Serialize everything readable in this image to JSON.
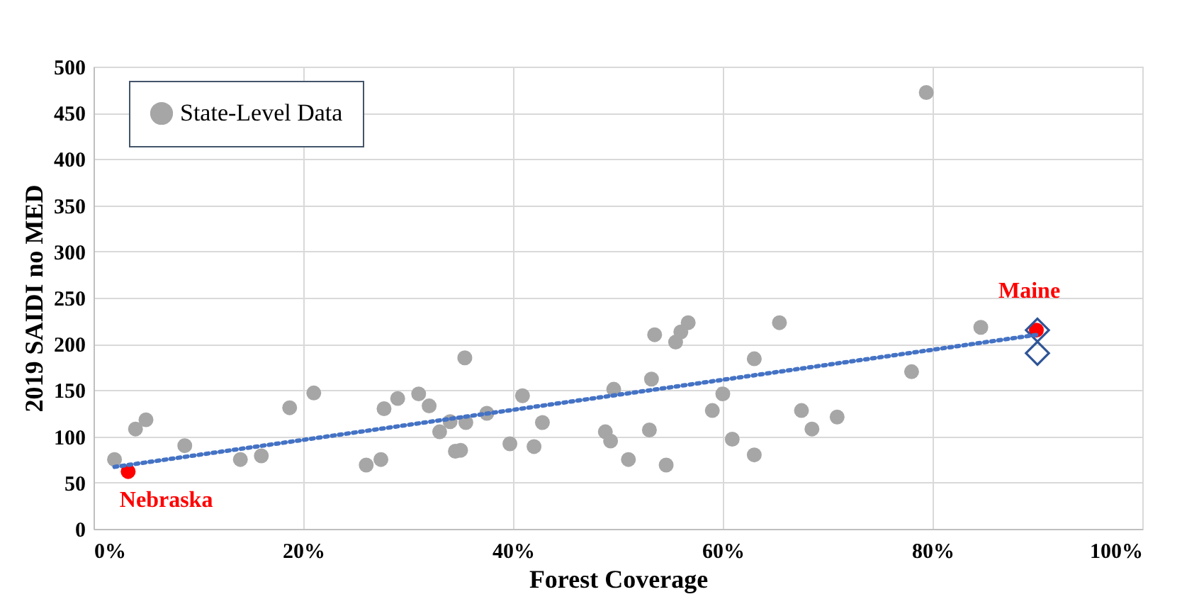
{
  "chart_data": {
    "type": "scatter",
    "xlabel": "Forest Coverage",
    "ylabel": "2019 SAIDI no MED",
    "xlim": [
      0,
      100
    ],
    "ylim": [
      0,
      500
    ],
    "xticks": [
      {
        "value": 0,
        "label": "0%"
      },
      {
        "value": 20,
        "label": "20%"
      },
      {
        "value": 40,
        "label": "40%"
      },
      {
        "value": 60,
        "label": "60%"
      },
      {
        "value": 80,
        "label": "80%"
      },
      {
        "value": 100,
        "label": "100%"
      }
    ],
    "yticks": [
      0,
      50,
      100,
      150,
      200,
      250,
      300,
      350,
      400,
      450,
      500
    ],
    "grid": true,
    "legend": "top left",
    "series": [
      {
        "name": "State-Level Data",
        "color": "#a6a6a6",
        "marker": "circle",
        "x": [
          2,
          4,
          5,
          8.7,
          14,
          16,
          18.7,
          21,
          26,
          27.4,
          27.7,
          29,
          31,
          32,
          33,
          34.5,
          35,
          34,
          35.4,
          35.5,
          37.5,
          39.7,
          40.9,
          42,
          42.8,
          48.8,
          49.3,
          49.6,
          51,
          53,
          53.2,
          53.5,
          54.6,
          55.5,
          56,
          56.7,
          59,
          60,
          60.9,
          63,
          63,
          65.4,
          67.5,
          68.5,
          70.9,
          78,
          79.4,
          84.6
        ],
        "values": [
          75,
          108,
          118,
          90,
          75,
          79,
          131,
          147,
          69,
          75,
          130,
          141,
          146,
          133,
          105,
          84,
          85,
          116,
          185,
          115,
          125,
          92,
          144,
          89,
          115,
          105,
          95,
          151,
          75,
          107,
          162,
          210,
          69,
          202,
          213,
          223,
          128,
          146,
          97,
          80,
          184,
          223,
          128,
          108,
          121,
          170,
          472,
          218
        ]
      },
      {
        "color": "#ff0000",
        "marker": "circle",
        "x": [
          3.3,
          89.9
        ],
        "values": [
          62,
          215
        ]
      },
      {
        "color": "#2f5597",
        "marker": "diamond",
        "x": [
          90,
          90
        ],
        "values": [
          215,
          190
        ]
      },
      {
        "type": "line",
        "color": "#4472c4",
        "line_style": "dotted",
        "x": [
          2,
          90
        ],
        "values": [
          67,
          210
        ]
      }
    ],
    "annotations": [
      {
        "text": "Nebraska",
        "x": 3.3,
        "y": 62
      },
      {
        "text": "Maine",
        "x": 89.9,
        "y": 215
      }
    ]
  }
}
